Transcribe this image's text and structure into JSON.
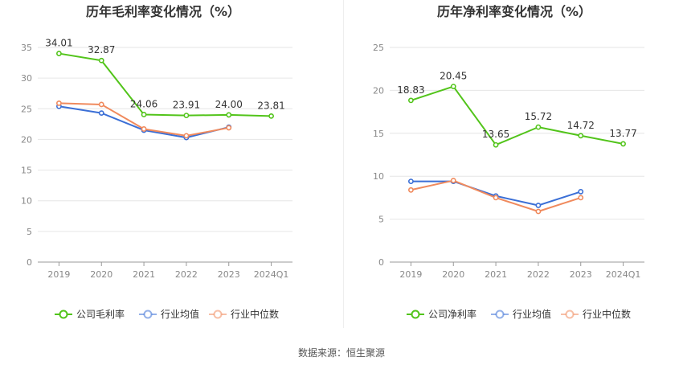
{
  "source": "数据来源：恒生聚源",
  "chart_data": [
    {
      "type": "line",
      "title": "历年毛利率变化情况（%）",
      "categories": [
        "2019",
        "2020",
        "2021",
        "2022",
        "2023",
        "2024Q1"
      ],
      "ylim": [
        0,
        35
      ],
      "yticks": [
        0,
        5,
        10,
        15,
        20,
        25,
        30,
        35
      ],
      "grid": true,
      "legend_position": "bottom",
      "series": [
        {
          "name": "公司毛利率",
          "color": "#52c41a",
          "values": [
            34.01,
            32.87,
            24.06,
            23.91,
            24.0,
            23.81
          ],
          "labels": [
            "34.01",
            "32.87",
            "24.06",
            "23.91",
            "24.00",
            "23.81"
          ]
        },
        {
          "name": "行业均值",
          "color": "#3b6fd6",
          "values": [
            25.4,
            24.3,
            21.5,
            20.3,
            22.0,
            null
          ]
        },
        {
          "name": "行业中位数",
          "color": "#f08a5d",
          "values": [
            25.9,
            25.7,
            21.7,
            20.6,
            21.9,
            null
          ]
        }
      ]
    },
    {
      "type": "line",
      "title": "历年净利率变化情况（%）",
      "categories": [
        "2019",
        "2020",
        "2021",
        "2022",
        "2023",
        "2024Q1"
      ],
      "ylim": [
        0,
        25
      ],
      "yticks": [
        0,
        5,
        10,
        15,
        20,
        25
      ],
      "grid": true,
      "legend_position": "bottom",
      "series": [
        {
          "name": "公司净利率",
          "color": "#52c41a",
          "values": [
            18.83,
            20.45,
            13.65,
            15.72,
            14.72,
            13.77
          ],
          "labels": [
            "18.83",
            "20.45",
            "13.65",
            "15.72",
            "14.72",
            "13.77"
          ]
        },
        {
          "name": "行业均值",
          "color": "#3b6fd6",
          "values": [
            9.4,
            9.4,
            7.7,
            6.6,
            8.2,
            null
          ]
        },
        {
          "name": "行业中位数",
          "color": "#f08a5d",
          "values": [
            8.4,
            9.5,
            7.5,
            5.9,
            7.5,
            null
          ]
        }
      ]
    }
  ]
}
